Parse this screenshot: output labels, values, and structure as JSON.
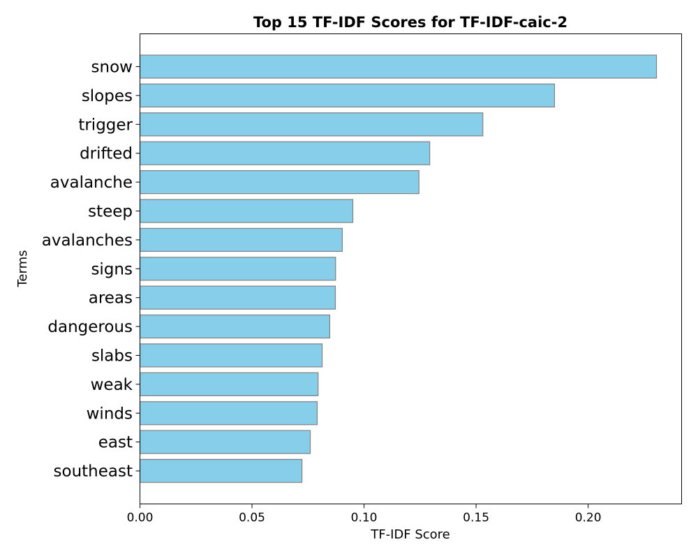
{
  "chart_data": {
    "type": "bar",
    "orientation": "horizontal",
    "title": "Top 15 TF-IDF Scores for TF-IDF-caic-2",
    "xlabel": "TF-IDF Score",
    "ylabel": "Terms",
    "xlim": [
      0,
      0.2417
    ],
    "xticks": [
      0.0,
      0.05,
      0.1,
      0.15,
      0.2
    ],
    "xtick_labels": [
      "0.00",
      "0.05",
      "0.10",
      "0.15",
      "0.20"
    ],
    "grid": false,
    "legend": "none",
    "bar_color": "#87CEEB",
    "bar_edge_color": "#808080",
    "categories": [
      "snow",
      "slopes",
      "trigger",
      "drifted",
      "avalanche",
      "steep",
      "avalanches",
      "signs",
      "areas",
      "dangerous",
      "slabs",
      "weak",
      "winds",
      "east",
      "southeast"
    ],
    "values": [
      0.2305,
      0.185,
      0.153,
      0.1293,
      0.1245,
      0.095,
      0.0903,
      0.0873,
      0.0872,
      0.0847,
      0.0813,
      0.0795,
      0.0791,
      0.076,
      0.0723
    ]
  }
}
